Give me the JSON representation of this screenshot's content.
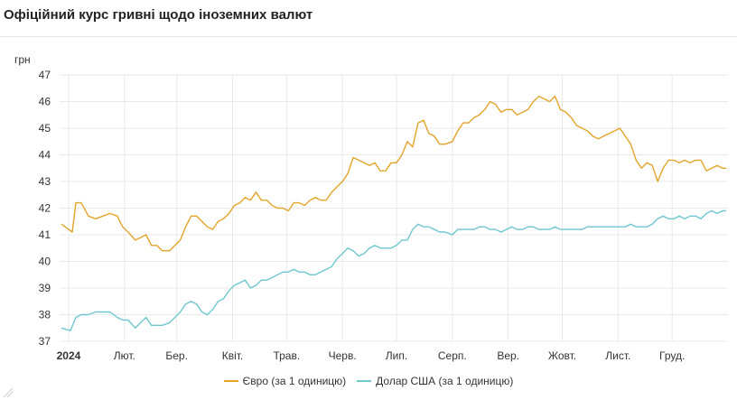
{
  "title": "Офіційний курс гривні щодо іноземних валют",
  "legend": {
    "eur_label": "Євро (за 1 одиницю)",
    "usd_label": "Долар США (за 1 одиницю)"
  },
  "colors": {
    "eur": "#e3a42a",
    "usd": "#6fc7cf",
    "grid": "#e9e9e9",
    "axis_text": "#333333"
  },
  "chart_data": {
    "type": "line",
    "title": "Офіційний курс гривні щодо іноземних валют",
    "ylabel": "грн",
    "xlabel": "",
    "ylim": [
      37,
      47
    ],
    "yticks": [
      37,
      38,
      39,
      40,
      41,
      42,
      43,
      44,
      45,
      46,
      47
    ],
    "xlim": [
      "2024-01-01",
      "2024-12-31"
    ],
    "x_ticks": [
      {
        "date": "2024-01-01",
        "label": "2024",
        "bold": true
      },
      {
        "date": "2024-02-01",
        "label": "Лют."
      },
      {
        "date": "2024-03-01",
        "label": "Бер."
      },
      {
        "date": "2024-04-01",
        "label": "Квіт."
      },
      {
        "date": "2024-05-01",
        "label": "Трав."
      },
      {
        "date": "2024-06-01",
        "label": "Черв."
      },
      {
        "date": "2024-07-01",
        "label": "Лип."
      },
      {
        "date": "2024-08-01",
        "label": "Серп."
      },
      {
        "date": "2024-09-01",
        "label": "Вер."
      },
      {
        "date": "2024-10-01",
        "label": "Жовт."
      },
      {
        "date": "2024-11-01",
        "label": "Лист."
      },
      {
        "date": "2024-12-01",
        "label": "Груд."
      }
    ],
    "grid": true,
    "legend_position": "bottom-center",
    "series": [
      {
        "name": "Євро (за 1 одиницю)",
        "color": "#e3a42a",
        "points": [
          [
            "2023-12-28",
            41.4
          ],
          [
            "2024-01-03",
            41.1
          ],
          [
            "2024-01-05",
            42.2
          ],
          [
            "2024-01-08",
            42.2
          ],
          [
            "2024-01-12",
            41.7
          ],
          [
            "2024-01-16",
            41.6
          ],
          [
            "2024-01-20",
            41.7
          ],
          [
            "2024-01-24",
            41.8
          ],
          [
            "2024-01-28",
            41.7
          ],
          [
            "2024-01-31",
            41.3
          ],
          [
            "2024-02-03",
            41.1
          ],
          [
            "2024-02-07",
            40.8
          ],
          [
            "2024-02-10",
            40.9
          ],
          [
            "2024-02-13",
            41.0
          ],
          [
            "2024-02-16",
            40.6
          ],
          [
            "2024-02-19",
            40.6
          ],
          [
            "2024-02-22",
            40.4
          ],
          [
            "2024-02-26",
            40.4
          ],
          [
            "2024-02-29",
            40.6
          ],
          [
            "2024-03-03",
            40.8
          ],
          [
            "2024-03-06",
            41.3
          ],
          [
            "2024-03-09",
            41.7
          ],
          [
            "2024-03-12",
            41.7
          ],
          [
            "2024-03-15",
            41.5
          ],
          [
            "2024-03-18",
            41.3
          ],
          [
            "2024-03-21",
            41.2
          ],
          [
            "2024-03-24",
            41.5
          ],
          [
            "2024-03-27",
            41.6
          ],
          [
            "2024-03-30",
            41.8
          ],
          [
            "2024-04-02",
            42.1
          ],
          [
            "2024-04-05",
            42.2
          ],
          [
            "2024-04-08",
            42.4
          ],
          [
            "2024-04-11",
            42.3
          ],
          [
            "2024-04-14",
            42.6
          ],
          [
            "2024-04-17",
            42.3
          ],
          [
            "2024-04-20",
            42.3
          ],
          [
            "2024-04-23",
            42.1
          ],
          [
            "2024-04-26",
            42.0
          ],
          [
            "2024-04-29",
            42.0
          ],
          [
            "2024-05-02",
            41.9
          ],
          [
            "2024-05-05",
            42.2
          ],
          [
            "2024-05-08",
            42.2
          ],
          [
            "2024-05-11",
            42.1
          ],
          [
            "2024-05-14",
            42.3
          ],
          [
            "2024-05-17",
            42.4
          ],
          [
            "2024-05-20",
            42.3
          ],
          [
            "2024-05-23",
            42.3
          ],
          [
            "2024-05-26",
            42.6
          ],
          [
            "2024-05-29",
            42.8
          ],
          [
            "2024-06-01",
            43.0
          ],
          [
            "2024-06-04",
            43.3
          ],
          [
            "2024-06-07",
            43.9
          ],
          [
            "2024-06-10",
            43.8
          ],
          [
            "2024-06-13",
            43.7
          ],
          [
            "2024-06-16",
            43.6
          ],
          [
            "2024-06-19",
            43.7
          ],
          [
            "2024-06-22",
            43.4
          ],
          [
            "2024-06-25",
            43.4
          ],
          [
            "2024-06-28",
            43.7
          ],
          [
            "2024-07-01",
            43.7
          ],
          [
            "2024-07-04",
            44.0
          ],
          [
            "2024-07-07",
            44.5
          ],
          [
            "2024-07-10",
            44.3
          ],
          [
            "2024-07-13",
            45.2
          ],
          [
            "2024-07-16",
            45.3
          ],
          [
            "2024-07-19",
            44.8
          ],
          [
            "2024-07-22",
            44.7
          ],
          [
            "2024-07-25",
            44.4
          ],
          [
            "2024-07-28",
            44.4
          ],
          [
            "2024-08-01",
            44.5
          ],
          [
            "2024-08-04",
            44.9
          ],
          [
            "2024-08-07",
            45.2
          ],
          [
            "2024-08-10",
            45.2
          ],
          [
            "2024-08-13",
            45.4
          ],
          [
            "2024-08-16",
            45.5
          ],
          [
            "2024-08-19",
            45.7
          ],
          [
            "2024-08-22",
            46.0
          ],
          [
            "2024-08-25",
            45.9
          ],
          [
            "2024-08-28",
            45.6
          ],
          [
            "2024-08-31",
            45.7
          ],
          [
            "2024-09-03",
            45.7
          ],
          [
            "2024-09-06",
            45.5
          ],
          [
            "2024-09-09",
            45.6
          ],
          [
            "2024-09-12",
            45.7
          ],
          [
            "2024-09-15",
            46.0
          ],
          [
            "2024-09-18",
            46.2
          ],
          [
            "2024-09-21",
            46.1
          ],
          [
            "2024-09-24",
            46.0
          ],
          [
            "2024-09-27",
            46.2
          ],
          [
            "2024-09-30",
            45.7
          ],
          [
            "2024-10-03",
            45.6
          ],
          [
            "2024-10-06",
            45.4
          ],
          [
            "2024-10-09",
            45.1
          ],
          [
            "2024-10-12",
            45.0
          ],
          [
            "2024-10-15",
            44.9
          ],
          [
            "2024-10-18",
            44.7
          ],
          [
            "2024-10-21",
            44.6
          ],
          [
            "2024-10-24",
            44.7
          ],
          [
            "2024-10-27",
            44.8
          ],
          [
            "2024-10-30",
            44.9
          ],
          [
            "2024-11-02",
            45.0
          ],
          [
            "2024-11-05",
            44.7
          ],
          [
            "2024-11-08",
            44.4
          ],
          [
            "2024-11-11",
            43.8
          ],
          [
            "2024-11-14",
            43.5
          ],
          [
            "2024-11-17",
            43.7
          ],
          [
            "2024-11-20",
            43.6
          ],
          [
            "2024-11-23",
            43.0
          ],
          [
            "2024-11-26",
            43.5
          ],
          [
            "2024-11-29",
            43.8
          ],
          [
            "2024-12-02",
            43.8
          ],
          [
            "2024-12-05",
            43.7
          ],
          [
            "2024-12-08",
            43.8
          ],
          [
            "2024-12-11",
            43.7
          ],
          [
            "2024-12-14",
            43.8
          ],
          [
            "2024-12-17",
            43.8
          ],
          [
            "2024-12-20",
            43.4
          ],
          [
            "2024-12-23",
            43.5
          ],
          [
            "2024-12-26",
            43.6
          ],
          [
            "2024-12-29",
            43.5
          ],
          [
            "2024-12-31",
            43.5
          ]
        ]
      },
      {
        "name": "Долар США (за 1 одиницю)",
        "color": "#6fc7cf",
        "points": [
          [
            "2023-12-28",
            37.5
          ],
          [
            "2024-01-02",
            37.4
          ],
          [
            "2024-01-05",
            37.9
          ],
          [
            "2024-01-08",
            38.0
          ],
          [
            "2024-01-12",
            38.0
          ],
          [
            "2024-01-16",
            38.1
          ],
          [
            "2024-01-20",
            38.1
          ],
          [
            "2024-01-24",
            38.1
          ],
          [
            "2024-01-28",
            37.9
          ],
          [
            "2024-01-31",
            37.8
          ],
          [
            "2024-02-03",
            37.8
          ],
          [
            "2024-02-07",
            37.5
          ],
          [
            "2024-02-10",
            37.7
          ],
          [
            "2024-02-13",
            37.9
          ],
          [
            "2024-02-16",
            37.6
          ],
          [
            "2024-02-19",
            37.6
          ],
          [
            "2024-02-22",
            37.6
          ],
          [
            "2024-02-26",
            37.7
          ],
          [
            "2024-02-29",
            37.9
          ],
          [
            "2024-03-03",
            38.1
          ],
          [
            "2024-03-06",
            38.4
          ],
          [
            "2024-03-09",
            38.5
          ],
          [
            "2024-03-12",
            38.4
          ],
          [
            "2024-03-15",
            38.1
          ],
          [
            "2024-03-18",
            38.0
          ],
          [
            "2024-03-21",
            38.2
          ],
          [
            "2024-03-24",
            38.5
          ],
          [
            "2024-03-27",
            38.6
          ],
          [
            "2024-03-30",
            38.9
          ],
          [
            "2024-04-02",
            39.1
          ],
          [
            "2024-04-05",
            39.2
          ],
          [
            "2024-04-08",
            39.3
          ],
          [
            "2024-04-11",
            39.0
          ],
          [
            "2024-04-14",
            39.1
          ],
          [
            "2024-04-17",
            39.3
          ],
          [
            "2024-04-20",
            39.3
          ],
          [
            "2024-04-23",
            39.4
          ],
          [
            "2024-04-26",
            39.5
          ],
          [
            "2024-04-29",
            39.6
          ],
          [
            "2024-05-02",
            39.6
          ],
          [
            "2024-05-05",
            39.7
          ],
          [
            "2024-05-08",
            39.6
          ],
          [
            "2024-05-11",
            39.6
          ],
          [
            "2024-05-14",
            39.5
          ],
          [
            "2024-05-17",
            39.5
          ],
          [
            "2024-05-20",
            39.6
          ],
          [
            "2024-05-23",
            39.7
          ],
          [
            "2024-05-26",
            39.8
          ],
          [
            "2024-05-29",
            40.1
          ],
          [
            "2024-06-01",
            40.3
          ],
          [
            "2024-06-04",
            40.5
          ],
          [
            "2024-06-07",
            40.4
          ],
          [
            "2024-06-10",
            40.2
          ],
          [
            "2024-06-13",
            40.3
          ],
          [
            "2024-06-16",
            40.5
          ],
          [
            "2024-06-19",
            40.6
          ],
          [
            "2024-06-22",
            40.5
          ],
          [
            "2024-06-25",
            40.5
          ],
          [
            "2024-06-28",
            40.5
          ],
          [
            "2024-07-01",
            40.6
          ],
          [
            "2024-07-04",
            40.8
          ],
          [
            "2024-07-07",
            40.8
          ],
          [
            "2024-07-10",
            41.2
          ],
          [
            "2024-07-13",
            41.4
          ],
          [
            "2024-07-16",
            41.3
          ],
          [
            "2024-07-19",
            41.3
          ],
          [
            "2024-07-22",
            41.2
          ],
          [
            "2024-07-25",
            41.1
          ],
          [
            "2024-07-28",
            41.1
          ],
          [
            "2024-08-01",
            41.0
          ],
          [
            "2024-08-04",
            41.2
          ],
          [
            "2024-08-07",
            41.2
          ],
          [
            "2024-08-10",
            41.2
          ],
          [
            "2024-08-13",
            41.2
          ],
          [
            "2024-08-16",
            41.3
          ],
          [
            "2024-08-19",
            41.3
          ],
          [
            "2024-08-22",
            41.2
          ],
          [
            "2024-08-25",
            41.2
          ],
          [
            "2024-08-28",
            41.1
          ],
          [
            "2024-08-31",
            41.2
          ],
          [
            "2024-09-03",
            41.3
          ],
          [
            "2024-09-06",
            41.2
          ],
          [
            "2024-09-09",
            41.2
          ],
          [
            "2024-09-12",
            41.3
          ],
          [
            "2024-09-15",
            41.3
          ],
          [
            "2024-09-18",
            41.2
          ],
          [
            "2024-09-21",
            41.2
          ],
          [
            "2024-09-24",
            41.2
          ],
          [
            "2024-09-27",
            41.3
          ],
          [
            "2024-09-30",
            41.2
          ],
          [
            "2024-10-03",
            41.2
          ],
          [
            "2024-10-06",
            41.2
          ],
          [
            "2024-10-09",
            41.2
          ],
          [
            "2024-10-12",
            41.2
          ],
          [
            "2024-10-15",
            41.3
          ],
          [
            "2024-10-18",
            41.3
          ],
          [
            "2024-10-21",
            41.3
          ],
          [
            "2024-10-24",
            41.3
          ],
          [
            "2024-10-27",
            41.3
          ],
          [
            "2024-10-30",
            41.3
          ],
          [
            "2024-11-02",
            41.3
          ],
          [
            "2024-11-05",
            41.3
          ],
          [
            "2024-11-08",
            41.4
          ],
          [
            "2024-11-11",
            41.3
          ],
          [
            "2024-11-14",
            41.3
          ],
          [
            "2024-11-17",
            41.3
          ],
          [
            "2024-11-20",
            41.4
          ],
          [
            "2024-11-23",
            41.6
          ],
          [
            "2024-11-26",
            41.7
          ],
          [
            "2024-11-29",
            41.6
          ],
          [
            "2024-12-02",
            41.6
          ],
          [
            "2024-12-05",
            41.7
          ],
          [
            "2024-12-08",
            41.6
          ],
          [
            "2024-12-11",
            41.7
          ],
          [
            "2024-12-14",
            41.7
          ],
          [
            "2024-12-17",
            41.6
          ],
          [
            "2024-12-20",
            41.8
          ],
          [
            "2024-12-23",
            41.9
          ],
          [
            "2024-12-26",
            41.8
          ],
          [
            "2024-12-29",
            41.9
          ],
          [
            "2024-12-31",
            41.9
          ]
        ]
      }
    ]
  }
}
